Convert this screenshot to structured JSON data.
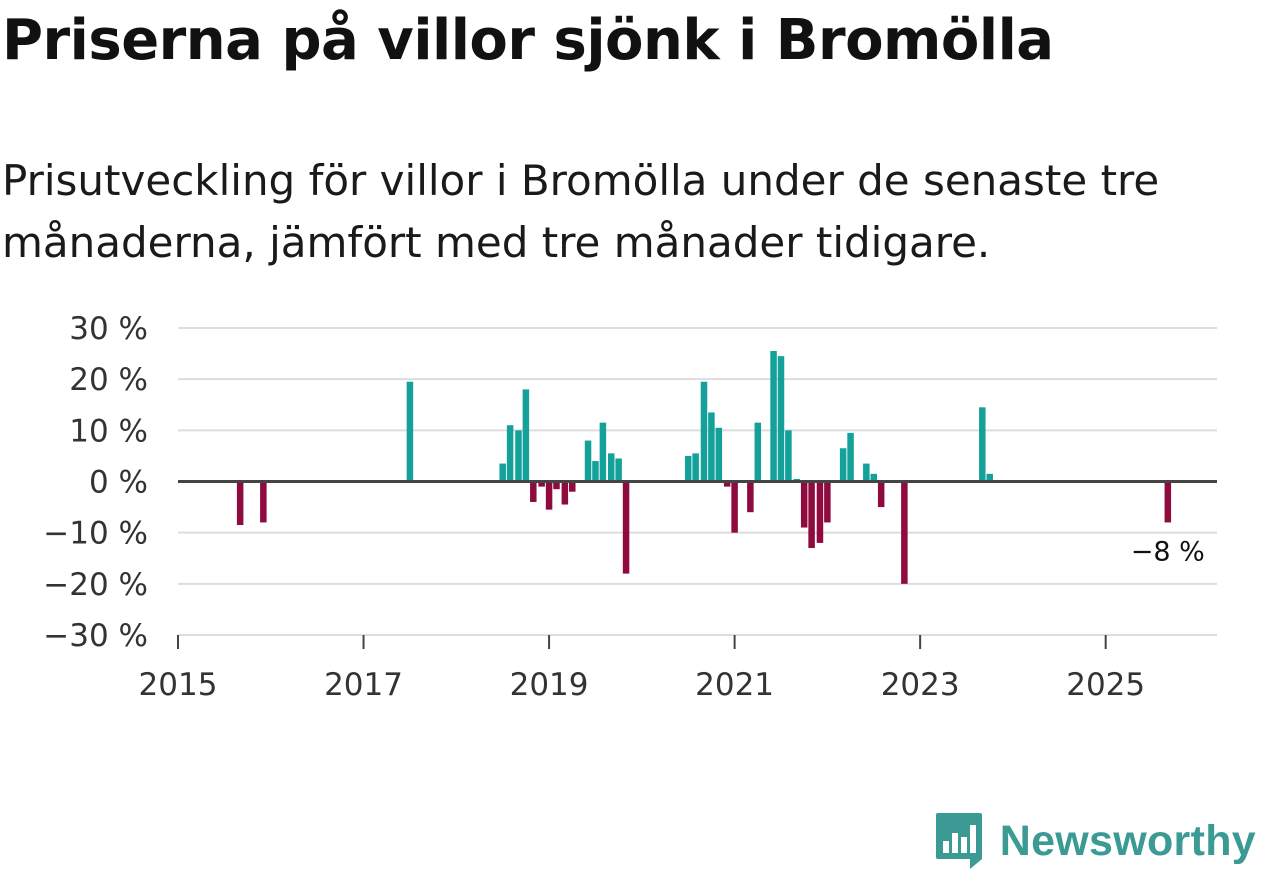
{
  "title": "Priserna på villor sjönk i Bromölla",
  "subtitle": "Prisutveckling för villor i Bromölla under de senaste tre månaderna, jämfört med tre månader tidigare.",
  "brand": {
    "name": "Newsworthy",
    "icon": "newsworthy-logo-icon",
    "color": "#3b9b94"
  },
  "colors": {
    "positive": "#14a19a",
    "negative": "#8e0a3f",
    "zero_line": "#444444",
    "grid": "#dddddd"
  },
  "chart_data": {
    "type": "bar",
    "title": "Priserna på villor sjönk i Bromölla",
    "xlabel": "",
    "ylabel": "",
    "ylim": [
      -30,
      30
    ],
    "xlim": [
      2015.0,
      2026.2
    ],
    "grid": true,
    "yticks": [
      30,
      20,
      10,
      0,
      -10,
      -20,
      -30
    ],
    "ytick_labels": [
      "30 %",
      "20 %",
      "10 %",
      "0 %",
      "−10 %",
      "−20 %",
      "−30 %"
    ],
    "xticks": [
      2015,
      2017,
      2019,
      2021,
      2023,
      2025
    ],
    "xtick_labels": [
      "2015",
      "2017",
      "2019",
      "2021",
      "2023",
      "2025"
    ],
    "unit": "%",
    "annotation": {
      "text": "−8 %",
      "x": 2025.67,
      "value": -8
    },
    "series": [
      {
        "name": "Prisutveckling",
        "x": [
          2015.67,
          2015.92,
          2017.5,
          2018.5,
          2018.58,
          2018.67,
          2018.75,
          2018.83,
          2018.92,
          2019.0,
          2019.08,
          2019.17,
          2019.25,
          2019.42,
          2019.5,
          2019.58,
          2019.67,
          2019.75,
          2019.83,
          2020.5,
          2020.58,
          2020.67,
          2020.75,
          2020.83,
          2020.92,
          2021.0,
          2021.17,
          2021.25,
          2021.42,
          2021.5,
          2021.58,
          2021.67,
          2021.75,
          2021.83,
          2021.92,
          2022.0,
          2022.17,
          2022.25,
          2022.42,
          2022.5,
          2022.58,
          2022.83,
          2023.67,
          2023.75,
          2025.67
        ],
        "values": [
          -8.5,
          -8,
          19.5,
          3.5,
          11,
          10,
          18,
          -4,
          -1,
          -5.5,
          -1.5,
          -4.5,
          -2,
          8,
          4,
          11.5,
          5.5,
          4.5,
          -18,
          5,
          5.5,
          19.5,
          13.5,
          10.5,
          -1,
          -10,
          -6,
          11.5,
          25.5,
          24.5,
          10,
          0.5,
          -9,
          -13,
          -12,
          -8,
          6.5,
          9.5,
          3.5,
          1.5,
          -5,
          -20,
          14.5,
          1.5,
          -8
        ]
      }
    ]
  }
}
